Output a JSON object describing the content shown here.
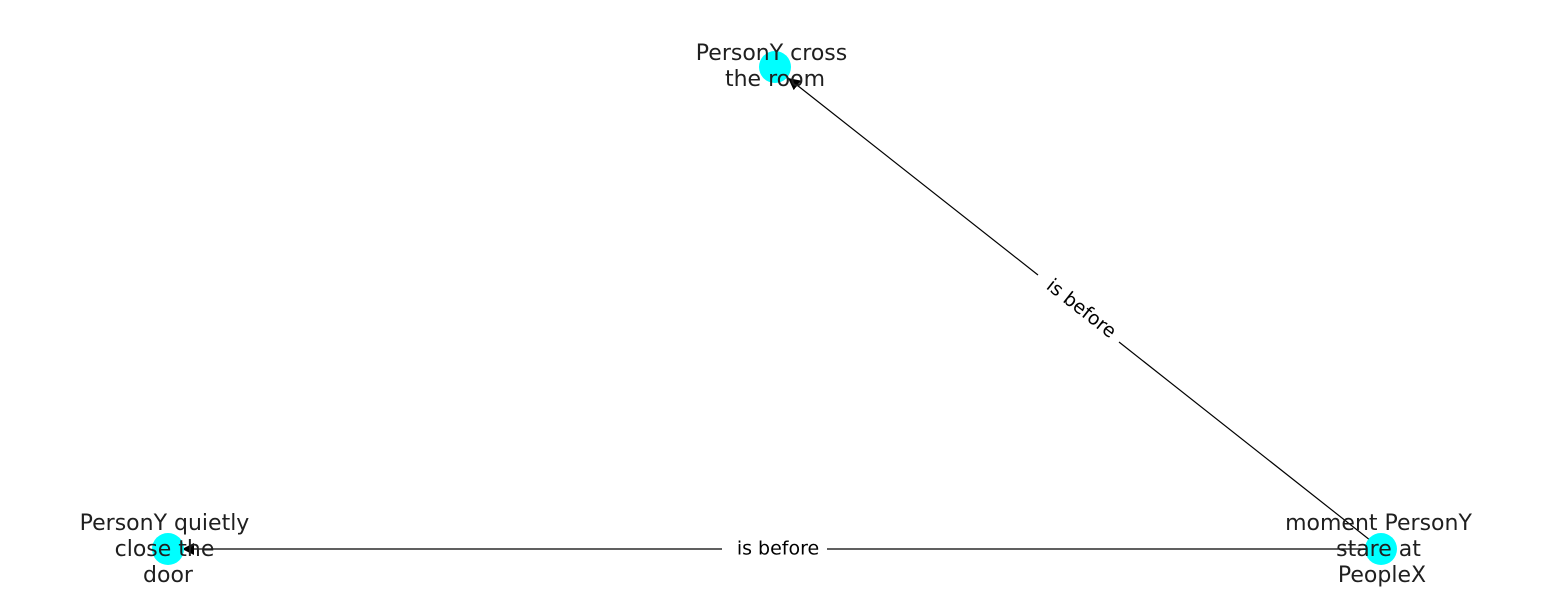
{
  "diagram": {
    "node_color": "#00ffff",
    "edge_color": "#000000",
    "nodes": [
      {
        "id": "cross",
        "lines": [
          "PersonY cross",
          "the room"
        ]
      },
      {
        "id": "close",
        "lines": [
          "PersonY quietly",
          "close the",
          "door"
        ]
      },
      {
        "id": "stare",
        "lines": [
          "moment PersonY",
          "stare at",
          "PeopleX"
        ]
      }
    ],
    "edges": [
      {
        "id": "stare-to-cross",
        "from": "stare",
        "to": "cross",
        "label": "is before"
      },
      {
        "id": "stare-to-close",
        "from": "stare",
        "to": "close",
        "label": "is before"
      }
    ]
  }
}
